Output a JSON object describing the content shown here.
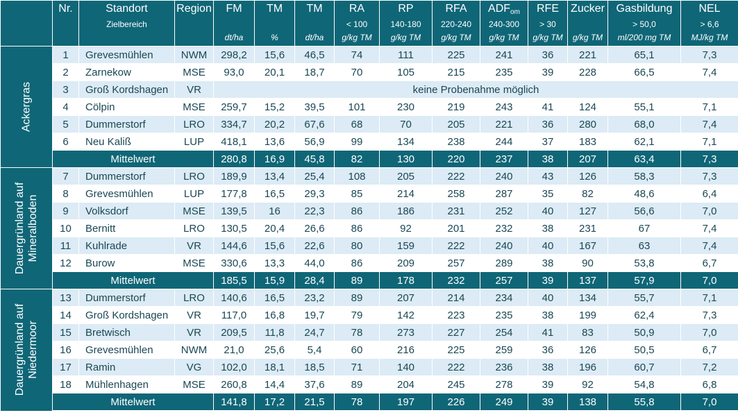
{
  "header": {
    "nr": "Nr.",
    "standort": "Standort",
    "zielbereich": "Zielbereich",
    "region": "Region",
    "columns": [
      {
        "key": "FM",
        "label": "FM",
        "target": "",
        "unit": "dt/ha"
      },
      {
        "key": "TM1",
        "label": "TM",
        "target": "",
        "unit": "%"
      },
      {
        "key": "TM2",
        "label": "TM",
        "target": "",
        "unit": "dt/ha"
      },
      {
        "key": "RA",
        "label": "RA",
        "target": "< 100",
        "unit": "g/kg TM"
      },
      {
        "key": "RP",
        "label": "RP",
        "target": "140-180",
        "unit": "g/kg TM"
      },
      {
        "key": "RFA",
        "label": "RFA",
        "target": "220-240",
        "unit": "g/kg TM"
      },
      {
        "key": "ADF",
        "label": "ADF",
        "label_sub": "om",
        "target": "240-300",
        "unit": "g/kg TM"
      },
      {
        "key": "RFE",
        "label": "RFE",
        "target": "> 30",
        "unit": "g/kg TM"
      },
      {
        "key": "Zucker",
        "label": "Zucker",
        "target": "",
        "unit": "g/kg TM"
      },
      {
        "key": "Gas",
        "label": "Gasbildung",
        "target": "> 50,0",
        "unit": "ml/200 mg TM"
      },
      {
        "key": "NEL",
        "label": "NEL",
        "target": "> 6,6",
        "unit": "MJ/kg TM"
      }
    ]
  },
  "groups": [
    {
      "name": "Ackergras",
      "rows": [
        {
          "nr": "1",
          "standort": "Grevesmühlen",
          "region": "NWM",
          "values": [
            "298,2",
            "15,6",
            "46,5",
            "74",
            "111",
            "225",
            "241",
            "36",
            "221",
            "65,1",
            "7,3"
          ]
        },
        {
          "nr": "2",
          "standort": "Zarnekow",
          "region": "MSE",
          "values": [
            "93,0",
            "20,1",
            "18,7",
            "70",
            "105",
            "215",
            "235",
            "39",
            "228",
            "66,5",
            "7,4"
          ]
        },
        {
          "nr": "3",
          "standort": "Groß Kordshagen",
          "region": "VR",
          "note": "keine Probenahme möglich"
        },
        {
          "nr": "4",
          "standort": "Cölpin",
          "region": "MSE",
          "values": [
            "259,7",
            "15,2",
            "39,5",
            "101",
            "230",
            "219",
            "243",
            "41",
            "124",
            "55,1",
            "7,1"
          ]
        },
        {
          "nr": "5",
          "standort": "Dummerstorf",
          "region": "LRO",
          "values": [
            "334,7",
            "20,2",
            "67,6",
            "68",
            "70",
            "205",
            "221",
            "36",
            "280",
            "68,0",
            "7,4"
          ]
        },
        {
          "nr": "6",
          "standort": "Neu Kaliß",
          "region": "LUP",
          "values": [
            "418,1",
            "13,6",
            "56,9",
            "99",
            "134",
            "238",
            "244",
            "37",
            "183",
            "62,1",
            "7,1"
          ]
        }
      ],
      "mean": {
        "label": "Mittelwert",
        "values": [
          "280,8",
          "16,9",
          "45,8",
          "82",
          "130",
          "220",
          "237",
          "38",
          "207",
          "63,4",
          "7,3"
        ]
      }
    },
    {
      "name": "Dauergrünland auf Mineralboden",
      "name_lines": [
        "Dauergrünland auf",
        "Mineralboden"
      ],
      "rows": [
        {
          "nr": "7",
          "standort": "Dummerstorf",
          "region": "LRO",
          "values": [
            "189,9",
            "13,4",
            "25,4",
            "108",
            "205",
            "222",
            "240",
            "43",
            "126",
            "58,3",
            "7,3"
          ]
        },
        {
          "nr": "8",
          "standort": "Grevesmühlen",
          "region": "LUP",
          "values": [
            "177,8",
            "16,5",
            "29,3",
            "85",
            "214",
            "258",
            "287",
            "35",
            "82",
            "48,6",
            "6,4"
          ]
        },
        {
          "nr": "9",
          "standort": "Volksdorf",
          "region": "MSE",
          "values": [
            "139,5",
            "16",
            "22,3",
            "86",
            "186",
            "231",
            "252",
            "40",
            "127",
            "56,6",
            "7,0"
          ]
        },
        {
          "nr": "10",
          "standort": "Bernitt",
          "region": "LRO",
          "values": [
            "130,5",
            "20,4",
            "26,6",
            "86",
            "92",
            "201",
            "232",
            "38",
            "231",
            "67",
            "7,4"
          ]
        },
        {
          "nr": "11",
          "standort": "Kuhlrade",
          "region": "VR",
          "values": [
            "144,6",
            "15,6",
            "22,6",
            "80",
            "159",
            "222",
            "240",
            "40",
            "167",
            "63",
            "7,4"
          ]
        },
        {
          "nr": "12",
          "standort": "Burow",
          "region": "MSE",
          "values": [
            "330,6",
            "13,3",
            "44,0",
            "86",
            "209",
            "257",
            "289",
            "38",
            "90",
            "53,8",
            "6,7"
          ]
        }
      ],
      "mean": {
        "label": "Mittelwert",
        "values": [
          "185,5",
          "15,9",
          "28,4",
          "89",
          "178",
          "232",
          "257",
          "39",
          "137",
          "57,9",
          "7,0"
        ]
      }
    },
    {
      "name": "Dauergrünland auf Niedermoor",
      "name_lines": [
        "Dauergrünland auf",
        "Niedermoor"
      ],
      "rows": [
        {
          "nr": "13",
          "standort": "Dummerstorf",
          "region": "LRO",
          "values": [
            "140,6",
            "16,5",
            "23,2",
            "89",
            "207",
            "214",
            "234",
            "40",
            "134",
            "55,7",
            "7,1"
          ]
        },
        {
          "nr": "14",
          "standort": "Groß Kordshagen",
          "region": "VR",
          "values": [
            "117,0",
            "16,8",
            "19,7",
            "79",
            "142",
            "223",
            "235",
            "38",
            "199",
            "62,4",
            "7,3"
          ]
        },
        {
          "nr": "15",
          "standort": "Bretwisch",
          "region": "VR",
          "values": [
            "209,5",
            "11,8",
            "24,7",
            "78",
            "273",
            "227",
            "254",
            "41",
            "83",
            "50,9",
            "7,0"
          ]
        },
        {
          "nr": "16",
          "standort": "Grevesmühlen",
          "region": "NWM",
          "values": [
            "21,0",
            "25,6",
            "5,4",
            "60",
            "216",
            "225",
            "259",
            "36",
            "126",
            "50,5",
            "6,7"
          ]
        },
        {
          "nr": "17",
          "standort": "Ramin",
          "region": "VG",
          "values": [
            "102,0",
            "18,1",
            "18,5",
            "71",
            "140",
            "222",
            "236",
            "38",
            "196",
            "60,7",
            "7,2"
          ]
        },
        {
          "nr": "18",
          "standort": "Mühlenhagen",
          "region": "MSE",
          "values": [
            "260,8",
            "14,4",
            "37,6",
            "89",
            "204",
            "245",
            "278",
            "39",
            "92",
            "54,8",
            "6,8"
          ]
        }
      ],
      "mean": {
        "label": "Mittelwert",
        "values": [
          "141,8",
          "17,2",
          "21,5",
          "78",
          "197",
          "226",
          "249",
          "39",
          "138",
          "55,8",
          "7,0"
        ]
      }
    }
  ]
}
